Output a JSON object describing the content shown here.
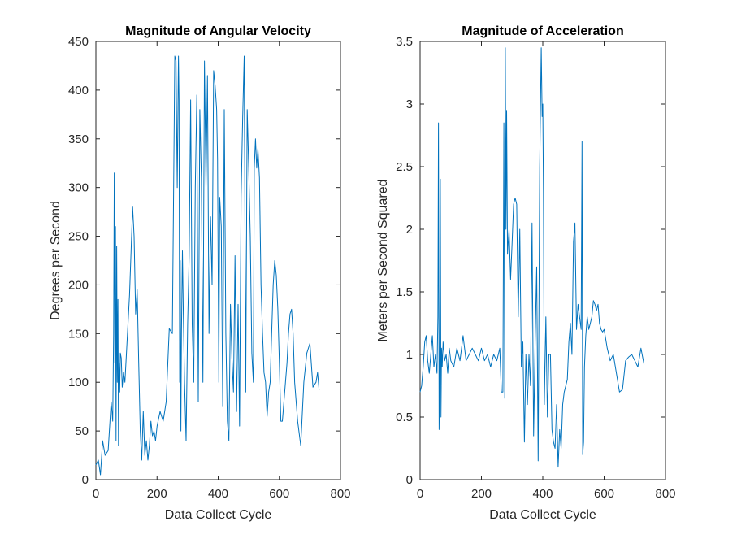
{
  "chart_data": [
    {
      "type": "line",
      "title": "Magnitude of Angular Velocity",
      "xlabel": "Data Collect Cycle",
      "ylabel": "Degrees per Second",
      "xlim": [
        0,
        800
      ],
      "ylim": [
        0,
        450
      ],
      "xticks": [
        0,
        200,
        400,
        600,
        800
      ],
      "yticks": [
        0,
        50,
        100,
        150,
        200,
        250,
        300,
        350,
        400,
        450
      ],
      "grid": false,
      "line_color": "#0072BD",
      "series": [
        {
          "x": [
            0,
            8,
            15,
            22,
            30,
            40,
            50,
            55,
            58,
            60,
            62,
            64,
            66,
            68,
            70,
            72,
            74,
            76,
            78,
            80,
            83,
            86,
            90,
            95,
            100,
            110,
            120,
            125,
            130,
            135,
            140,
            145,
            150,
            155,
            160,
            165,
            170,
            175,
            180,
            185,
            190,
            195,
            200,
            210,
            220,
            230,
            240,
            250,
            258,
            262,
            266,
            270,
            272,
            274,
            276,
            278,
            280,
            283,
            286,
            290,
            295,
            300,
            305,
            310,
            315,
            320,
            325,
            330,
            335,
            340,
            345,
            350,
            355,
            360,
            365,
            370,
            375,
            380,
            385,
            390,
            395,
            398,
            402,
            405,
            410,
            415,
            420,
            425,
            430,
            435,
            440,
            445,
            450,
            455,
            460,
            465,
            470,
            475,
            480,
            485,
            490,
            495,
            500,
            505,
            510,
            515,
            518,
            522,
            526,
            530,
            535,
            540,
            545,
            550,
            555,
            560,
            565,
            570,
            575,
            580,
            585,
            590,
            595,
            600,
            605,
            610,
            615,
            620,
            625,
            630,
            635,
            640,
            645,
            650,
            660,
            670,
            680,
            690,
            700,
            710,
            720,
            725,
            730
          ],
          "y": [
            15,
            20,
            5,
            40,
            25,
            30,
            80,
            60,
            150,
            315,
            120,
            260,
            40,
            240,
            100,
            185,
            35,
            120,
            90,
            130,
            125,
            95,
            110,
            100,
            130,
            190,
            280,
            250,
            170,
            195,
            120,
            50,
            20,
            70,
            25,
            40,
            20,
            35,
            60,
            45,
            50,
            40,
            55,
            70,
            60,
            80,
            155,
            150,
            435,
            430,
            300,
            435,
            390,
            100,
            225,
            50,
            150,
            235,
            170,
            100,
            40,
            160,
            230,
            390,
            160,
            100,
            300,
            395,
            80,
            380,
            310,
            100,
            430,
            300,
            415,
            150,
            270,
            200,
            420,
            405,
            380,
            330,
            100,
            290,
            260,
            75,
            380,
            150,
            60,
            40,
            180,
            125,
            90,
            230,
            70,
            180,
            55,
            290,
            370,
            435,
            90,
            380,
            320,
            250,
            130,
            100,
            320,
            350,
            320,
            340,
            310,
            200,
            150,
            110,
            100,
            65,
            90,
            100,
            150,
            200,
            225,
            210,
            175,
            120,
            60,
            60,
            80,
            100,
            120,
            150,
            170,
            175,
            150,
            100,
            60,
            35,
            100,
            130,
            140,
            95,
            100,
            110,
            92
          ]
        }
      ]
    },
    {
      "type": "line",
      "title": "Magnitude of Acceleration",
      "xlabel": "Data Collect Cycle",
      "ylabel": "Meters per Second Squared",
      "xlim": [
        0,
        800
      ],
      "ylim": [
        0,
        3.5
      ],
      "xticks": [
        0,
        200,
        400,
        600,
        800
      ],
      "yticks": [
        0,
        0.5,
        1,
        1.5,
        2,
        2.5,
        3,
        3.5
      ],
      "grid": false,
      "line_color": "#0072BD",
      "series": [
        {
          "x": [
            0,
            5,
            10,
            15,
            20,
            25,
            30,
            35,
            40,
            45,
            50,
            55,
            58,
            60,
            62,
            64,
            66,
            68,
            70,
            72,
            75,
            80,
            85,
            90,
            95,
            100,
            110,
            120,
            130,
            140,
            150,
            160,
            170,
            180,
            190,
            200,
            210,
            220,
            230,
            240,
            250,
            260,
            265,
            270,
            273,
            276,
            278,
            280,
            282,
            285,
            290,
            295,
            300,
            305,
            310,
            315,
            320,
            325,
            330,
            335,
            340,
            345,
            350,
            355,
            360,
            365,
            370,
            375,
            380,
            385,
            390,
            395,
            398,
            400,
            402,
            405,
            408,
            410,
            415,
            420,
            425,
            430,
            435,
            440,
            445,
            450,
            455,
            460,
            465,
            470,
            475,
            480,
            485,
            490,
            495,
            500,
            505,
            510,
            515,
            520,
            525,
            528,
            530,
            533,
            536,
            540,
            545,
            550,
            555,
            560,
            565,
            570,
            575,
            580,
            585,
            590,
            595,
            600,
            610,
            620,
            630,
            640,
            650,
            660,
            670,
            680,
            690,
            700,
            710,
            720,
            730
          ],
          "y": [
            0.7,
            0.75,
            0.9,
            1.1,
            1.15,
            0.95,
            0.85,
            1.0,
            1.15,
            0.9,
            1.0,
            0.85,
            1.3,
            2.85,
            0.4,
            0.9,
            2.4,
            0.5,
            1.05,
            0.9,
            1.1,
            0.95,
            1.0,
            0.85,
            1.05,
            0.95,
            0.9,
            1.05,
            0.95,
            1.15,
            0.95,
            1.0,
            1.05,
            1.0,
            0.95,
            1.05,
            0.95,
            1.0,
            0.9,
            1.0,
            0.95,
            1.05,
            0.7,
            0.7,
            2.85,
            0.65,
            3.45,
            2.0,
            2.95,
            1.8,
            2.0,
            1.6,
            1.9,
            2.2,
            2.25,
            2.2,
            1.3,
            2.0,
            0.9,
            1.1,
            0.3,
            1.0,
            0.6,
            1.0,
            0.75,
            2.05,
            0.35,
            1.1,
            1.7,
            0.15,
            2.5,
            3.45,
            2.9,
            3.0,
            2.3,
            0.6,
            1.0,
            1.3,
            0.5,
            1.0,
            1.0,
            0.4,
            0.3,
            0.25,
            0.6,
            0.1,
            0.4,
            0.25,
            0.6,
            0.7,
            0.75,
            0.8,
            1.1,
            1.25,
            1.0,
            1.9,
            2.05,
            1.2,
            1.4,
            1.3,
            1.2,
            2.7,
            0.2,
            0.3,
            0.9,
            1.15,
            1.3,
            1.2,
            1.25,
            1.3,
            1.43,
            1.4,
            1.35,
            1.4,
            1.25,
            1.2,
            1.18,
            1.2,
            1.05,
            0.95,
            1.0,
            0.85,
            0.7,
            0.72,
            0.95,
            0.98,
            1.0,
            0.95,
            0.9,
            1.05,
            0.92
          ]
        }
      ]
    }
  ]
}
